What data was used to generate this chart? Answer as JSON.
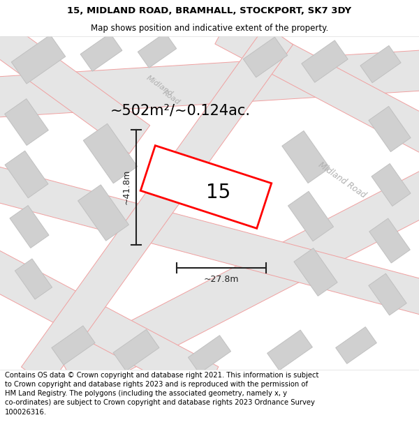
{
  "title_line1": "15, MIDLAND ROAD, BRAMHALL, STOCKPORT, SK7 3DY",
  "title_line2": "Map shows position and indicative extent of the property.",
  "area_text": "~502m²/~0.124ac.",
  "dim_width": "~27.8m",
  "dim_height": "~41.8m",
  "number_label": "15",
  "footer_text": "Contains OS data © Crown copyright and database right 2021. This information is subject to Crown copyright and database rights 2023 and is reproduced with the permission of HM Land Registry. The polygons (including the associated geometry, namely x, y co-ordinates) are subject to Crown copyright and database rights 2023 Ordnance Survey 100026316.",
  "map_bg": "#ffffff",
  "road_fill": "#e5e5e5",
  "building_fill": "#d0d0d0",
  "road_outline": "#f0a0a0",
  "property_color": "#ff0000",
  "dim_color": "#222222",
  "road_label_color": "#b0b0b0",
  "title_fontsize": 9.5,
  "subtitle_fontsize": 8.5,
  "footer_fontsize": 7.2,
  "area_fontsize": 15,
  "number_fontsize": 20,
  "dim_fontsize": 9
}
